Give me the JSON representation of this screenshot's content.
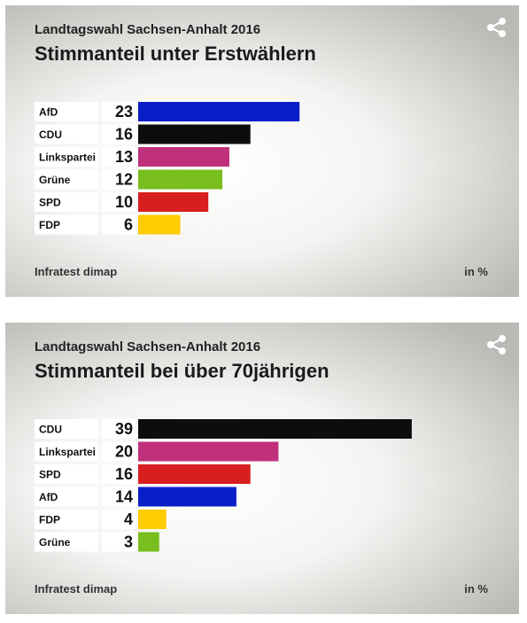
{
  "charts": [
    {
      "subtitle": "Landtagswahl Sachsen-Anhalt 2016",
      "title": "Stimmanteil unter Erstwählern",
      "source": "Infratest dimap",
      "unit": "in %"
    },
    {
      "subtitle": "Landtagswahl Sachsen-Anhalt 2016",
      "title": "Stimmanteil bei über 70jährigen",
      "source": "Infratest dimap",
      "unit": "in %"
    }
  ],
  "icons": {
    "share": "share-icon"
  },
  "chart_data": [
    {
      "type": "bar",
      "orientation": "horizontal",
      "title": "Stimmanteil unter Erstwählern",
      "subtitle": "Landtagswahl Sachsen-Anhalt 2016",
      "categories": [
        "AfD",
        "CDU",
        "Linkspartei",
        "Grüne",
        "SPD",
        "FDP"
      ],
      "values": [
        23,
        16,
        13,
        12,
        10,
        6
      ],
      "colors": [
        "#0a1ec8",
        "#0d0d0d",
        "#c0307a",
        "#78be1e",
        "#d81e1e",
        "#ffcc00"
      ],
      "xlim": [
        0,
        40
      ],
      "unit": "in %",
      "source": "Infratest dimap"
    },
    {
      "type": "bar",
      "orientation": "horizontal",
      "title": "Stimmanteil bei über 70jährigen",
      "subtitle": "Landtagswahl Sachsen-Anhalt 2016",
      "categories": [
        "CDU",
        "Linkspartei",
        "SPD",
        "AfD",
        "FDP",
        "Grüne"
      ],
      "values": [
        39,
        20,
        16,
        14,
        4,
        3
      ],
      "colors": [
        "#0d0d0d",
        "#c0307a",
        "#d81e1e",
        "#0a1ec8",
        "#ffcc00",
        "#78be1e"
      ],
      "xlim": [
        0,
        40
      ],
      "unit": "in %",
      "source": "Infratest dimap"
    }
  ]
}
